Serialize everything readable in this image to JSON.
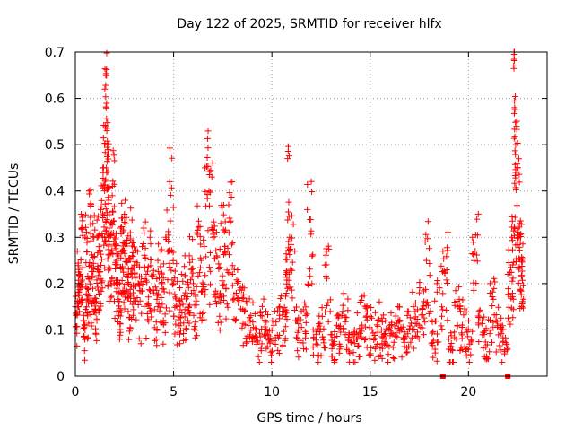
{
  "chart_data": {
    "type": "scatter",
    "title": "Day 122 of 2025, SRMTID for receiver hlfx",
    "xlabel": "GPS time / hours",
    "ylabel": "SRMTID / TECUs",
    "xlim": [
      0,
      24
    ],
    "ylim": [
      0,
      0.7
    ],
    "xticks": [
      0,
      5,
      10,
      15,
      20
    ],
    "xtick_labels": [
      "0",
      "5",
      "10",
      "15",
      "20"
    ],
    "yticks": [
      0,
      0.1,
      0.2,
      0.3,
      0.4,
      0.5,
      0.6,
      0.7
    ],
    "ytick_labels": [
      "0",
      "0.1",
      "0.2",
      "0.3",
      "0.4",
      "0.5",
      "0.6",
      "0.7"
    ],
    "grid": true,
    "legend": "none",
    "series": [
      {
        "name": "SRMTID",
        "color": "#ff0000",
        "marker": "plus",
        "x": [
          0.0,
          0.1,
          0.2,
          0.3,
          0.4,
          0.5,
          0.6,
          0.7,
          0.8,
          0.9,
          1.0,
          1.1,
          1.2,
          1.3,
          1.4,
          1.5,
          1.55,
          1.6,
          1.65,
          1.7,
          1.8,
          1.9,
          2.0,
          2.1,
          2.2,
          2.3,
          2.4,
          2.5,
          2.6,
          2.7,
          2.8,
          2.9,
          3.0,
          3.2,
          3.4,
          3.6,
          3.8,
          4.0,
          4.2,
          4.4,
          4.6,
          4.8,
          5.0,
          5.2,
          5.4,
          5.6,
          5.8,
          6.0,
          6.2,
          6.4,
          6.6,
          6.8,
          7.0,
          7.2,
          7.4,
          7.6,
          7.8,
          8.0,
          8.3,
          8.6,
          8.9,
          9.2,
          9.5,
          9.8,
          10.1,
          10.4,
          10.7,
          10.8,
          10.9,
          11.2,
          11.5,
          11.8,
          12.1,
          12.4,
          12.7,
          13.0,
          13.3,
          13.6,
          13.9,
          14.2,
          14.5,
          14.8,
          15.1,
          15.4,
          15.7,
          16.0,
          16.3,
          16.6,
          16.9,
          17.2,
          17.5,
          17.8,
          18.1,
          18.4,
          18.7,
          19.0,
          19.3,
          19.6,
          19.9,
          20.2,
          20.5,
          20.8,
          21.1,
          21.4,
          21.7,
          22.0,
          22.2,
          22.3,
          22.35,
          22.4,
          22.5,
          22.6,
          22.7
        ],
        "y": [
          0.15,
          0.27,
          0.22,
          0.35,
          0.12,
          0.3,
          0.19,
          0.4,
          0.24,
          0.33,
          0.16,
          0.3,
          0.28,
          0.36,
          0.45,
          0.62,
          0.65,
          0.53,
          0.48,
          0.38,
          0.33,
          0.41,
          0.3,
          0.25,
          0.18,
          0.32,
          0.27,
          0.35,
          0.29,
          0.22,
          0.31,
          0.26,
          0.24,
          0.2,
          0.28,
          0.22,
          0.3,
          0.18,
          0.25,
          0.2,
          0.3,
          0.42,
          0.2,
          0.15,
          0.22,
          0.18,
          0.26,
          0.2,
          0.31,
          0.25,
          0.45,
          0.4,
          0.3,
          0.26,
          0.33,
          0.27,
          0.37,
          0.22,
          0.17,
          0.14,
          0.12,
          0.1,
          0.13,
          0.09,
          0.11,
          0.15,
          0.22,
          0.47,
          0.3,
          0.12,
          0.14,
          0.36,
          0.1,
          0.13,
          0.24,
          0.09,
          0.11,
          0.14,
          0.08,
          0.1,
          0.16,
          0.13,
          0.1,
          0.12,
          0.09,
          0.11,
          0.13,
          0.1,
          0.14,
          0.15,
          0.18,
          0.29,
          0.12,
          0.2,
          0.27,
          0.08,
          0.16,
          0.14,
          0.1,
          0.3,
          0.13,
          0.09,
          0.2,
          0.12,
          0.1,
          0.22,
          0.3,
          0.67,
          0.58,
          0.5,
          0.45,
          0.33,
          0.25
        ],
        "jitter_points_per_sample": 14,
        "jitter_spread": 0.06
      },
      {
        "name": "data gaps",
        "color": "#ff0000",
        "marker": "square",
        "x": [
          18.7,
          22.0
        ],
        "y": [
          0,
          0
        ]
      }
    ]
  }
}
